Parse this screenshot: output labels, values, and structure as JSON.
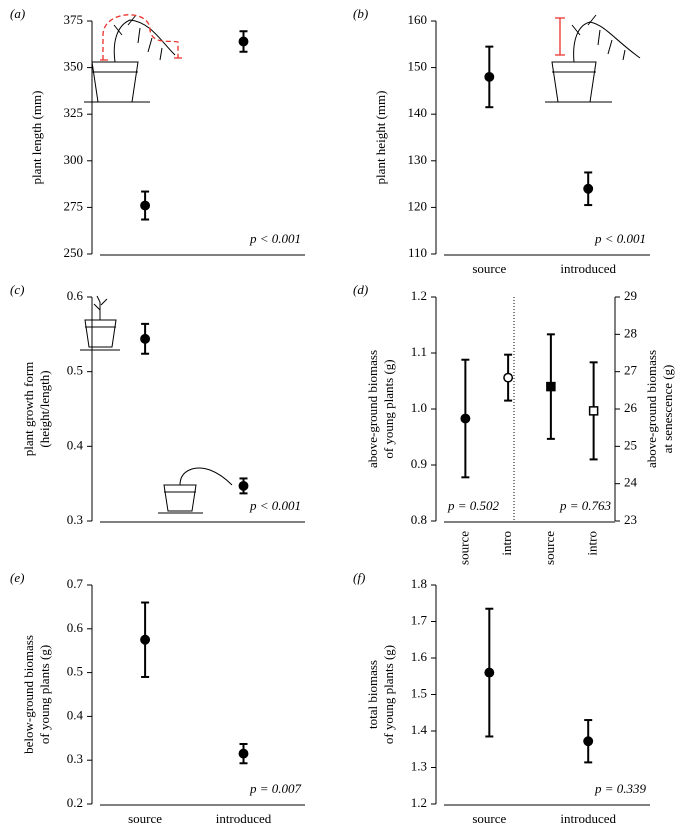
{
  "chart_data": [
    {
      "type": "point",
      "panel": "(a)",
      "ylabel": [
        "plant length (mm)"
      ],
      "categories": [
        null,
        null
      ],
      "series": [
        {
          "marker": "circle",
          "filled": true,
          "color": "#000000",
          "values": [
            276,
            364
          ],
          "errors": [
            7.5,
            5.5
          ]
        }
      ],
      "ylim": [
        250,
        375
      ],
      "yticks": [
        250,
        275,
        300,
        325,
        350,
        375
      ],
      "annotation": "p < 0.001"
    },
    {
      "type": "point",
      "panel": "(b)",
      "ylabel": [
        "plant height (mm)"
      ],
      "categories": [
        "source",
        "introduced"
      ],
      "series": [
        {
          "marker": "circle",
          "filled": true,
          "color": "#000000",
          "values": [
            148,
            124
          ],
          "errors": [
            6.5,
            3.5
          ]
        }
      ],
      "ylim": [
        110,
        160
      ],
      "yticks": [
        110,
        120,
        130,
        140,
        150,
        160
      ],
      "annotation": "p < 0.001"
    },
    {
      "type": "point",
      "panel": "(c)",
      "ylabel": [
        "plant growth form",
        "(height/length)"
      ],
      "categories": [
        null,
        null
      ],
      "series": [
        {
          "marker": "circle",
          "filled": true,
          "color": "#000000",
          "values": [
            0.544,
            0.347
          ],
          "errors": [
            0.02,
            0.01
          ]
        }
      ],
      "ylim": [
        0.3,
        0.6
      ],
      "yticks": [
        0.3,
        0.4,
        0.5,
        0.6
      ],
      "annotation": "p < 0.001"
    },
    {
      "type": "point",
      "panel": "(d)",
      "ylabel": [
        "above-ground biomass",
        "of young plants (g)"
      ],
      "y2label": [
        "above-ground biomass",
        "at senescence (g)"
      ],
      "categories": [
        "source",
        "intro",
        "source",
        "intro"
      ],
      "series": [
        {
          "marker": "circle",
          "filled": true,
          "color": "#000000",
          "values": [
            0.983,
            null,
            null,
            null
          ],
          "errors": [
            0.105,
            null,
            null,
            null
          ]
        },
        {
          "marker": "circle",
          "filled": false,
          "color": "#000000",
          "values": [
            null,
            1.056,
            null,
            null
          ],
          "errors": [
            null,
            0.041,
            null,
            null
          ]
        },
        {
          "marker": "square",
          "filled": true,
          "color": "#000000",
          "axis": "y2",
          "values": [
            null,
            null,
            26.6,
            null
          ],
          "errors": [
            null,
            null,
            1.4,
            null
          ]
        },
        {
          "marker": "square",
          "filled": false,
          "color": "#000000",
          "axis": "y2",
          "values": [
            null,
            null,
            null,
            25.95
          ],
          "errors": [
            null,
            null,
            null,
            1.3
          ]
        }
      ],
      "ylim": [
        0.8,
        1.2
      ],
      "yticks": [
        0.8,
        0.9,
        {
          "value": 1,
          "label": "1.0"
        },
        1.1,
        1.2
      ],
      "y2lim": [
        23,
        29
      ],
      "y2ticks": [
        23,
        24,
        25,
        26,
        27,
        28,
        29
      ],
      "annotations": [
        "p = 0.502",
        "p = 0.763"
      ]
    },
    {
      "type": "point",
      "panel": "(e)",
      "ylabel": [
        "below-ground biomass",
        "of young plants (g)"
      ],
      "categories": [
        "source",
        "introduced"
      ],
      "series": [
        {
          "marker": "circle",
          "filled": true,
          "color": "#000000",
          "values": [
            0.575,
            0.315
          ],
          "errors": [
            0.085,
            0.022
          ]
        }
      ],
      "ylim": [
        0.2,
        0.7
      ],
      "yticks": [
        0.2,
        0.3,
        0.4,
        0.5,
        0.6,
        0.7
      ],
      "annotation": "p = 0.007"
    },
    {
      "type": "point",
      "panel": "(f)",
      "ylabel": [
        "total biomass",
        "of young plants (g)"
      ],
      "categories": [
        "source",
        "introduced"
      ],
      "series": [
        {
          "marker": "circle",
          "filled": true,
          "color": "#000000",
          "values": [
            1.56,
            1.372
          ],
          "errors": [
            0.175,
            0.058
          ]
        }
      ],
      "ylim": [
        1.2,
        1.8
      ],
      "yticks": [
        1.2,
        1.3,
        1.4,
        1.5,
        1.6,
        1.7,
        1.8
      ],
      "annotation": "p = 0.339"
    }
  ]
}
